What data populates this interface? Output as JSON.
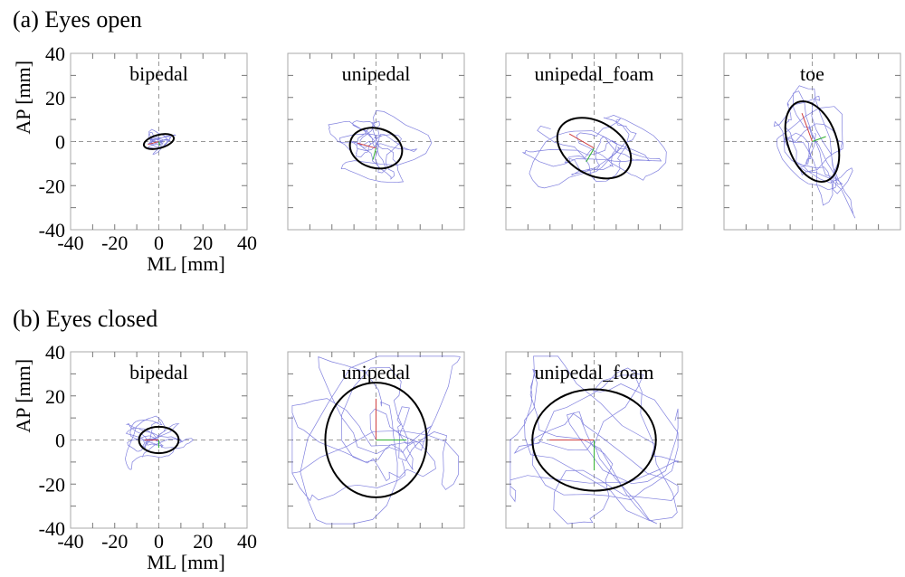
{
  "sections": [
    {
      "title": "(a) Eyes open"
    },
    {
      "title": "(b) Eyes closed"
    }
  ],
  "axes": {
    "xlabel": "ML [mm]",
    "ylabel": "AP [mm]",
    "ticks": [
      "-40",
      "-20",
      "0",
      "20",
      "40"
    ],
    "xlim": [
      -40,
      40
    ],
    "ylim": [
      -40,
      40
    ]
  },
  "colors": {
    "ellipse": "#000000",
    "trajectory": "#6a6ad8",
    "axis_x": "#d04040",
    "axis_y": "#30b030",
    "zero_line": "#999999"
  },
  "chart_data": [
    {
      "type": "scatter",
      "section": 0,
      "title": "bipedal",
      "xlim": [
        -40,
        40
      ],
      "ylim": [
        -40,
        40
      ],
      "grid": false,
      "ellipse": {
        "cx": 0,
        "cy": 0,
        "rx": 7,
        "ry": 3,
        "angle_deg": 15
      },
      "spread": [
        4,
        2
      ],
      "seed": 3
    },
    {
      "type": "scatter",
      "section": 0,
      "title": "unipedal",
      "xlim": [
        -40,
        40
      ],
      "ylim": [
        -40,
        40
      ],
      "grid": false,
      "ellipse": {
        "cx": 0,
        "cy": -3,
        "rx": 12,
        "ry": 9,
        "angle_deg": -15
      },
      "spread": [
        9,
        7
      ],
      "seed": 7
    },
    {
      "type": "scatter",
      "section": 0,
      "title": "unipedal_foam",
      "xlim": [
        -40,
        40
      ],
      "ylim": [
        -40,
        40
      ],
      "grid": false,
      "ellipse": {
        "cx": 0,
        "cy": -3,
        "rx": 18,
        "ry": 12,
        "angle_deg": -30
      },
      "spread": [
        12,
        9
      ],
      "seed": 11
    },
    {
      "type": "scatter",
      "section": 0,
      "title": "toe",
      "xlim": [
        -40,
        40
      ],
      "ylim": [
        -40,
        40
      ],
      "grid": false,
      "ellipse": {
        "cx": 0,
        "cy": 0,
        "rx": 11,
        "ry": 19,
        "angle_deg": 20
      },
      "spread": [
        9,
        14
      ],
      "seed": 19
    },
    {
      "type": "scatter",
      "section": 1,
      "title": "bipedal",
      "xlim": [
        -40,
        40
      ],
      "ylim": [
        -40,
        40
      ],
      "grid": false,
      "ellipse": {
        "cx": 0,
        "cy": 0,
        "rx": 9,
        "ry": 6,
        "angle_deg": 0
      },
      "spread": [
        6,
        4
      ],
      "seed": 23
    },
    {
      "type": "scatter",
      "section": 1,
      "title": "unipedal",
      "xlim": [
        -40,
        40
      ],
      "ylim": [
        -40,
        40
      ],
      "grid": false,
      "ellipse": {
        "cx": 0,
        "cy": 0,
        "rx": 23,
        "ry": 26,
        "angle_deg": 0
      },
      "spread": [
        18,
        22
      ],
      "seed": 29
    },
    {
      "type": "scatter",
      "section": 1,
      "title": "unipedal_foam",
      "xlim": [
        -40,
        40
      ],
      "ylim": [
        -40,
        40
      ],
      "grid": false,
      "ellipse": {
        "cx": 0,
        "cy": 0,
        "rx": 28,
        "ry": 23,
        "angle_deg": 0
      },
      "spread": [
        24,
        20
      ],
      "seed": 31
    }
  ]
}
